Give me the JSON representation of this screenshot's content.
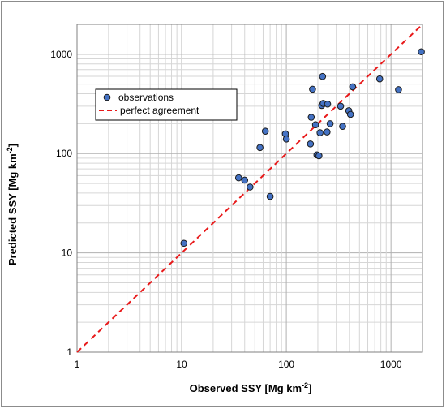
{
  "chart_data": {
    "type": "scatter",
    "xscale": "log",
    "yscale": "log",
    "xlim": [
      1,
      2000
    ],
    "ylim": [
      1,
      2000
    ],
    "xticks": [
      1,
      10,
      100,
      1000
    ],
    "yticks": [
      1,
      10,
      100,
      1000
    ],
    "xtick_labels": [
      "1",
      "10",
      "100",
      "1000"
    ],
    "ytick_labels": [
      "1",
      "10",
      "100",
      "1000"
    ],
    "xlabel": "Observed SSY  [Mg km",
    "ylabel": "Predicted SSY  [Mg km",
    "unit_exponent": "-2",
    "unit_close": "]",
    "grid": true,
    "legend_placement": "upper-left",
    "series": [
      {
        "name": "observations",
        "marker": "circle",
        "color": "#4472C4",
        "edge_color": "#1a1a1a",
        "points": [
          [
            10.5,
            12.5
          ],
          [
            35,
            57
          ],
          [
            40,
            54
          ],
          [
            45,
            46
          ],
          [
            56,
            115
          ],
          [
            63,
            168
          ],
          [
            70,
            37
          ],
          [
            98,
            158
          ],
          [
            100,
            140
          ],
          [
            170,
            125
          ],
          [
            173,
            232
          ],
          [
            178,
            445
          ],
          [
            190,
            195
          ],
          [
            196,
            97
          ],
          [
            205,
            95
          ],
          [
            210,
            162
          ],
          [
            218,
            305
          ],
          [
            222,
            598
          ],
          [
            225,
            320
          ],
          [
            245,
            165
          ],
          [
            248,
            315
          ],
          [
            262,
            200
          ],
          [
            330,
            300
          ],
          [
            345,
            188
          ],
          [
            395,
            270
          ],
          [
            410,
            248
          ],
          [
            430,
            470
          ],
          [
            780,
            565
          ],
          [
            1180,
            440
          ],
          [
            1950,
            1060
          ]
        ]
      },
      {
        "name": "perfect agreement",
        "type": "line",
        "style": "dashed",
        "color": "#e8191a",
        "points": [
          [
            1,
            1
          ],
          [
            2000,
            2000
          ]
        ]
      }
    ]
  }
}
